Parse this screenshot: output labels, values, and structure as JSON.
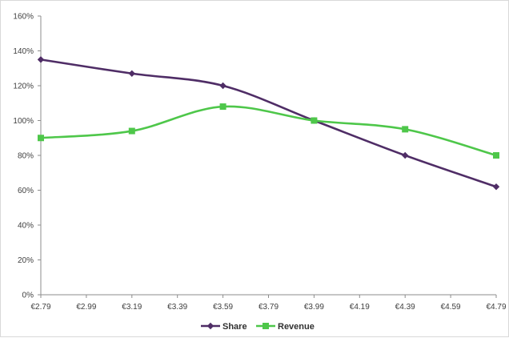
{
  "chart_data": {
    "type": "line",
    "title": "",
    "xlabel": "",
    "ylabel": "",
    "x": [
      2.79,
      2.99,
      3.19,
      3.39,
      3.59,
      3.79,
      3.99,
      4.19,
      4.39,
      4.59,
      4.79
    ],
    "x_tick_labels": [
      "€2.79",
      "€2.99",
      "€3.19",
      "€3.39",
      "€3.59",
      "€3.79",
      "€3.99",
      "€4.19",
      "€4.39",
      "€4.59",
      "€4.79"
    ],
    "y_tick_labels": [
      "0%",
      "20%",
      "40%",
      "60%",
      "80%",
      "100%",
      "120%",
      "140%",
      "160%"
    ],
    "ylim": [
      0,
      160
    ],
    "xlim": [
      2.79,
      4.79
    ],
    "grid": false,
    "smooth": true,
    "legend_position": "bottom",
    "series": [
      {
        "name": "Share",
        "color": "#4f2d66",
        "marker": "diamond",
        "points": [
          [
            2.79,
            135
          ],
          [
            3.19,
            127
          ],
          [
            3.59,
            120
          ],
          [
            3.99,
            100
          ],
          [
            4.39,
            80
          ],
          [
            4.79,
            62
          ]
        ]
      },
      {
        "name": "Revenue",
        "color": "#4ec74a",
        "marker": "square",
        "points": [
          [
            2.79,
            90
          ],
          [
            3.19,
            94
          ],
          [
            3.59,
            108
          ],
          [
            3.99,
            100
          ],
          [
            4.39,
            95
          ],
          [
            4.79,
            80
          ]
        ]
      }
    ]
  }
}
